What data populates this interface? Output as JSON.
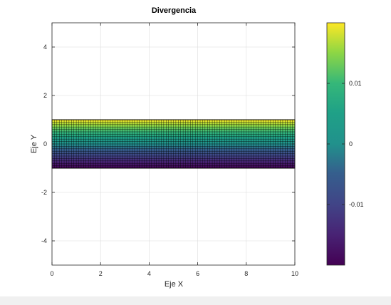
{
  "window": {},
  "chart_data": {
    "type": "heatmap",
    "title": "Divergencia",
    "xlabel": "Eje X",
    "ylabel": "Eje Y",
    "xlim": [
      0,
      10
    ],
    "ylim": [
      -5,
      5
    ],
    "x_ticks": [
      0,
      2,
      4,
      6,
      8,
      10
    ],
    "y_ticks": [
      -4,
      -2,
      0,
      2,
      4
    ],
    "grid": true,
    "surface": {
      "x_range": [
        0,
        10
      ],
      "y_range": [
        -1,
        1
      ],
      "mesh": "dense black grid lines",
      "value_trend": "increases with y"
    },
    "colormap": "viridis",
    "colorbar": {
      "placement": "right",
      "range": [
        -0.02,
        0.02
      ],
      "ticks": [
        -0.01,
        0,
        0.01
      ],
      "tick_labels": [
        "-0.01",
        "0",
        "0.01"
      ]
    }
  }
}
